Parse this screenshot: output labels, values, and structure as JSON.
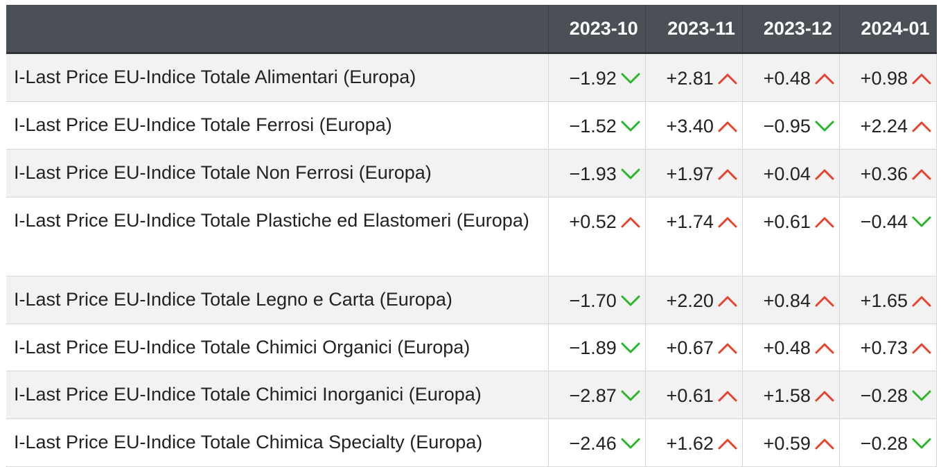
{
  "chart_data": {
    "type": "table",
    "columns": [
      "",
      "2023-10",
      "2023-11",
      "2023-12",
      "2024-01"
    ],
    "rows": [
      {
        "label": "I-Last Price EU-Indice Totale Alimentari (Europa)",
        "values": [
          "−1.92",
          "+2.81",
          "+0.48",
          "+0.98"
        ],
        "trend": [
          "down",
          "up",
          "up",
          "up"
        ]
      },
      {
        "label": "I-Last Price EU-Indice Totale Ferrosi (Europa)",
        "values": [
          "−1.52",
          "+3.40",
          "−0.95",
          "+2.24"
        ],
        "trend": [
          "down",
          "up",
          "down",
          "up"
        ]
      },
      {
        "label": "I-Last Price EU-Indice Totale Non Ferrosi (Europa)",
        "values": [
          "−1.93",
          "+1.97",
          "+0.04",
          "+0.36"
        ],
        "trend": [
          "down",
          "up",
          "up",
          "up"
        ]
      },
      {
        "label": "I-Last Price EU-Indice Totale Plastiche ed Elastomeri (Europa)",
        "values": [
          "+0.52",
          "+1.74",
          "+0.61",
          "−0.44"
        ],
        "trend": [
          "up",
          "up",
          "up",
          "down"
        ]
      },
      {
        "label": "I-Last Price EU-Indice Totale Legno e Carta (Europa)",
        "values": [
          "−1.70",
          "+2.20",
          "+0.84",
          "+1.65"
        ],
        "trend": [
          "down",
          "up",
          "up",
          "up"
        ]
      },
      {
        "label": "I-Last Price EU-Indice Totale Chimici Organici (Europa)",
        "values": [
          "−1.89",
          "+0.67",
          "+0.48",
          "+0.73"
        ],
        "trend": [
          "down",
          "up",
          "up",
          "up"
        ]
      },
      {
        "label": "I-Last Price EU-Indice Totale Chimici Inorganici (Europa)",
        "values": [
          "−2.87",
          "+0.61",
          "+1.58",
          "−0.28"
        ],
        "trend": [
          "down",
          "up",
          "up",
          "down"
        ]
      },
      {
        "label": "I-Last Price EU-Indice Totale Chimica Specialty (Europa)",
        "values": [
          "−2.46",
          "+1.62",
          "+0.59",
          "−0.28"
        ],
        "trend": [
          "down",
          "up",
          "up",
          "down"
        ]
      }
    ]
  },
  "colors": {
    "header_bg": "#4b4f56",
    "up_arrow": "#e8412c",
    "down_arrow": "#2bb52b"
  },
  "icons": {
    "up": "chevron-up-icon",
    "down": "chevron-down-icon"
  }
}
